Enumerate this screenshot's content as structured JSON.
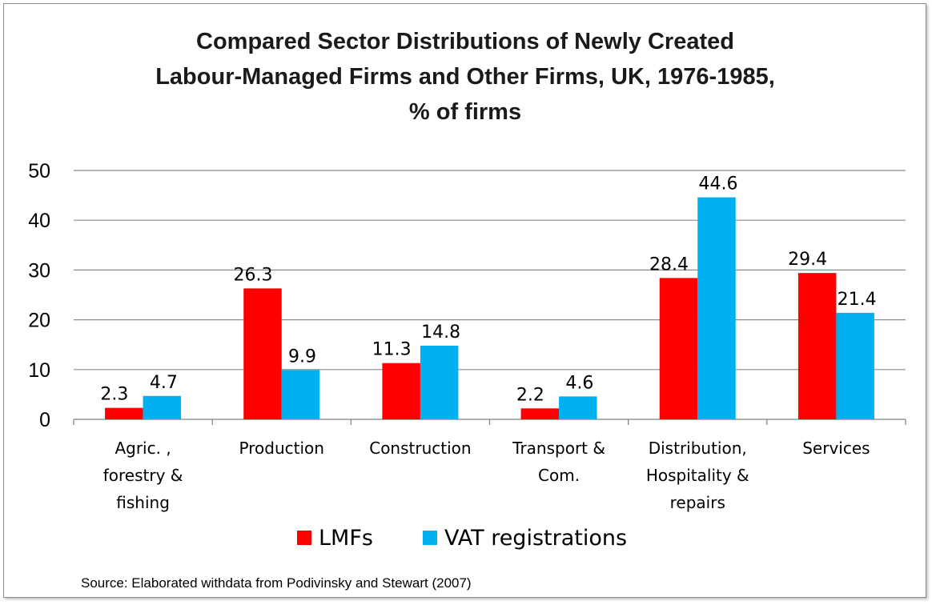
{
  "chart_data": {
    "type": "bar",
    "title_lines": [
      "Compared Sector Distributions of Newly Created",
      "Labour-Managed Firms and Other Firms, UK, 1976-1985,",
      "% of firms"
    ],
    "categories": [
      [
        "Agric. ,",
        "forestry &",
        "fishing"
      ],
      [
        "Production"
      ],
      [
        "Construction"
      ],
      [
        "Transport &",
        "Com."
      ],
      [
        "Distribution,",
        "Hospitality &",
        "repairs"
      ],
      [
        "Services"
      ]
    ],
    "series": [
      {
        "name": "LMFs",
        "color": "#ff0000",
        "values": [
          2.3,
          26.3,
          11.3,
          2.2,
          28.4,
          29.4
        ]
      },
      {
        "name": "VAT registrations",
        "color": "#00b0f0",
        "values": [
          4.7,
          9.9,
          14.8,
          4.6,
          44.6,
          21.4
        ]
      }
    ],
    "ylim": [
      0,
      50
    ],
    "yticks": [
      0,
      10,
      20,
      30,
      40,
      50
    ],
    "grid": true,
    "legend": "bottom",
    "source": "Source:  Elaborated withdata from Podivinsky and Stewart (2007)"
  }
}
